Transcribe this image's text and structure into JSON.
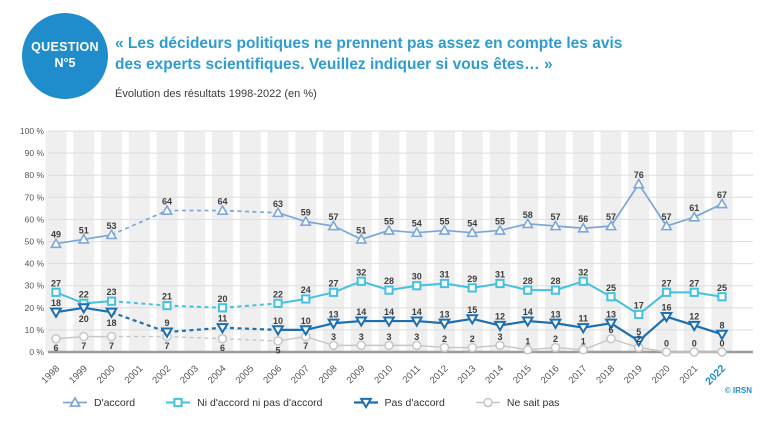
{
  "header": {
    "badge_line1": "QUESTION",
    "badge_line2": "N°5",
    "title_line1": "« Les décideurs politiques ne prennent pas assez en compte les avis",
    "title_line2": "des experts scientifiques. Veuillez indiquer si vous êtes… »",
    "subtitle": "Évolution des résultats 1998-2022 (en %)"
  },
  "colors": {
    "accent": "#1F8DCB",
    "title_blue": "#2E9CCF",
    "agree": "#7BA7D7",
    "neither": "#45C1E0",
    "disagree": "#1C6FB0",
    "dont_know": "#C6C6C6",
    "grid": "#DEDEDE",
    "axis": "#9E9E9E",
    "band": "#EFEFEF",
    "value_label": "#3D3D3D",
    "tick_label": "#555555"
  },
  "chart_data": {
    "type": "line",
    "title": "« Les décideurs politiques ne prennent pas assez en compte les avis des experts scientifiques. Veuillez indiquer si vous êtes… »",
    "subtitle": "Évolution des résultats 1998-2022 (en %)",
    "x": [
      "1998",
      "1999",
      "2000",
      "2001",
      "2002",
      "2003",
      "2004",
      "2005",
      "2006",
      "2007",
      "2008",
      "2009",
      "2010",
      "2011",
      "2012",
      "2013",
      "2014",
      "2015",
      "2016",
      "2017",
      "2018",
      "2019",
      "2020",
      "2021",
      "2022"
    ],
    "highlight_last_tick": true,
    "ylim": [
      0,
      100
    ],
    "yticks": [
      "0 %",
      "10 %",
      "20 %",
      "30 %",
      "40 %",
      "50 %",
      "60 %",
      "70 %",
      "80 %",
      "90 %",
      "100 %"
    ],
    "grid": "horizontal",
    "legend_position": "bottom",
    "gap_style": "dashed segments between non-consecutive survey years",
    "series": [
      {
        "name": "D'accord",
        "marker": "triangle-up",
        "color": "#7BA7D7",
        "values": [
          49,
          51,
          53,
          null,
          64,
          null,
          64,
          null,
          63,
          59,
          57,
          51,
          55,
          54,
          55,
          54,
          55,
          58,
          57,
          56,
          57,
          76,
          57,
          61,
          67
        ]
      },
      {
        "name": "Ni d'accord ni pas d'accord",
        "marker": "square",
        "color": "#45C1E0",
        "values": [
          27,
          22,
          23,
          null,
          21,
          null,
          20,
          null,
          22,
          24,
          27,
          32,
          28,
          30,
          31,
          29,
          31,
          28,
          28,
          32,
          25,
          17,
          27,
          27,
          25
        ]
      },
      {
        "name": "Pas d'accord",
        "marker": "triangle-down",
        "color": "#1C6FB0",
        "values": [
          18,
          20,
          18,
          null,
          9,
          null,
          11,
          null,
          10,
          10,
          13,
          14,
          14,
          14,
          13,
          15,
          12,
          14,
          13,
          11,
          13,
          5,
          16,
          12,
          8
        ]
      },
      {
        "name": "Ne sait pas",
        "marker": "circle",
        "color": "#C6C6C6",
        "values": [
          6,
          7,
          7,
          null,
          7,
          null,
          6,
          null,
          5,
          7,
          3,
          3,
          3,
          3,
          2,
          2,
          3,
          1,
          2,
          1,
          6,
          2,
          0,
          0,
          0
        ]
      }
    ]
  },
  "footer": {
    "credit": "© IRSN"
  }
}
